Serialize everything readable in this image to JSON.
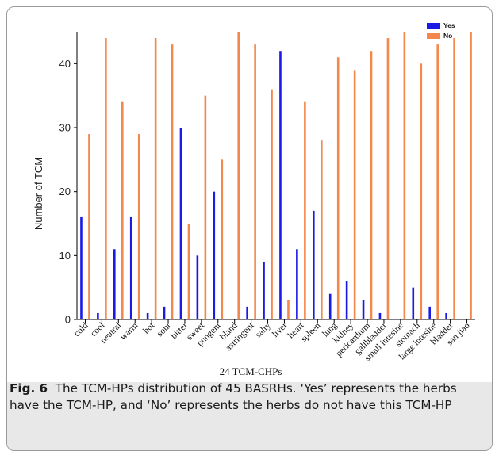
{
  "chart_data": {
    "type": "bar",
    "xlabel": "24 TCM-CHPs",
    "ylabel": "Number of TCM",
    "ylim": [
      0,
      45
    ],
    "yticks": [
      0,
      10,
      20,
      30,
      40
    ],
    "grid": false,
    "legend_position": "top-right",
    "categories": [
      "cold",
      "cool",
      "neutral",
      "warm",
      "hot",
      "sour",
      "bitter",
      "sweet",
      "pungent",
      "bland",
      "astringent",
      "salty",
      "liver",
      "heart",
      "spleen",
      "lung",
      "kidney",
      "pericardium",
      "gallbladder",
      "small intesine",
      "stomach",
      "large intesine",
      "bladder",
      "san jiao"
    ],
    "series": [
      {
        "name": "Yes",
        "color": "#1a1ae6",
        "values": [
          16,
          1,
          11,
          16,
          1,
          2,
          30,
          10,
          20,
          0,
          2,
          9,
          42,
          11,
          17,
          4,
          6,
          3,
          1,
          0,
          5,
          2,
          1,
          0
        ]
      },
      {
        "name": "No",
        "color": "#f4874b",
        "values": [
          29,
          44,
          34,
          29,
          44,
          43,
          15,
          35,
          25,
          45,
          43,
          36,
          3,
          34,
          28,
          41,
          39,
          42,
          44,
          45,
          40,
          43,
          44,
          45
        ]
      }
    ]
  },
  "caption": {
    "label": "Fig. 6",
    "text": "The TCM-HPs distribution of 45 BASRHs. ‘Yes’ represents the herbs have the TCM-HP, and ‘No’ represents the herbs do not have this TCM-HP"
  }
}
